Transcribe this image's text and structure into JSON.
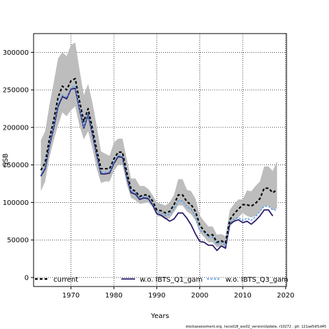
{
  "footer": "stockassessment.org, nscod18_ass02_versionUpdate, r10272 , git: 121ae5df1d45",
  "chart_data": {
    "type": "line",
    "xlabel": "Years",
    "ylabel": "SSB",
    "xlim": [
      1961.3,
      2020.2
    ],
    "ylim": [
      -12000,
      325000
    ],
    "xticks": [
      1970,
      1980,
      1990,
      2000,
      2010,
      2020
    ],
    "yticks": [
      0,
      50000,
      100000,
      150000,
      200000,
      250000,
      300000
    ],
    "grid": true,
    "legend_position": "bottom",
    "series": [
      {
        "name": "current",
        "color": "#000000",
        "dash": "4,3",
        "x": [
          1963,
          1964,
          1965,
          1966,
          1967,
          1968,
          1969,
          1970,
          1971,
          1972,
          1973,
          1974,
          1975,
          1976,
          1977,
          1978,
          1979,
          1980,
          1981,
          1982,
          1983,
          1984,
          1985,
          1986,
          1987,
          1988,
          1989,
          1990,
          1991,
          1992,
          1993,
          1994,
          1995,
          1996,
          1997,
          1998,
          1999,
          2000,
          2001,
          2002,
          2003,
          2004,
          2005,
          2006,
          2007,
          2008,
          2009,
          2010,
          2011,
          2012,
          2013,
          2014,
          2015,
          2016,
          2017,
          2018
        ],
        "values": [
          143000,
          153000,
          185000,
          210000,
          240000,
          255000,
          250000,
          262000,
          265000,
          235000,
          208000,
          225000,
          198000,
          170000,
          145000,
          145000,
          145000,
          158000,
          167000,
          167000,
          140000,
          118000,
          115000,
          108000,
          110000,
          110000,
          102000,
          90000,
          89000,
          86000,
          88000,
          97000,
          110000,
          110000,
          101000,
          97000,
          88000,
          70000,
          62000,
          56000,
          57000,
          47000,
          49000,
          46000,
          77000,
          85000,
          91000,
          97000,
          97000,
          95000,
          99000,
          105000,
          119000,
          119000,
          113000,
          117000
        ],
        "band_upper": [
          183000,
          195000,
          230000,
          260000,
          292000,
          300000,
          295000,
          310000,
          313000,
          277000,
          243000,
          258000,
          233000,
          202000,
          168000,
          165000,
          162000,
          180000,
          185000,
          185000,
          158000,
          132000,
          132000,
          122000,
          122000,
          118000,
          110000,
          100000,
          98000,
          96000,
          100000,
          110000,
          131000,
          131000,
          117000,
          115000,
          105000,
          83000,
          75000,
          68000,
          68000,
          57000,
          58000,
          55000,
          90000,
          98000,
          104000,
          104000,
          116000,
          115000,
          122000,
          128000,
          148000,
          148000,
          142000,
          155000
        ],
        "band_lower": [
          115000,
          128000,
          160000,
          183000,
          203000,
          220000,
          215000,
          223000,
          228000,
          202000,
          184000,
          195000,
          172000,
          145000,
          126000,
          128000,
          128000,
          142000,
          150000,
          150000,
          124000,
          106000,
          103000,
          98000,
          99000,
          100000,
          94000,
          82000,
          81000,
          77000,
          79000,
          87000,
          96000,
          96000,
          88000,
          84000,
          76000,
          60000,
          54000,
          47000,
          47000,
          40000,
          42000,
          39000,
          68000,
          74000,
          80000,
          86000,
          82000,
          80000,
          82000,
          88000,
          95000,
          96000,
          90000,
          92000
        ]
      },
      {
        "name": "w.o. IBTS_Q1_gam",
        "color": "#2b1b6b",
        "dash": "",
        "x": [
          1963,
          1964,
          1965,
          1966,
          1967,
          1968,
          1969,
          1970,
          1971,
          1972,
          1973,
          1974,
          1975,
          1976,
          1977,
          1978,
          1979,
          1980,
          1981,
          1982,
          1983,
          1984,
          1985,
          1986,
          1987,
          1988,
          1989,
          1990,
          1991,
          1992,
          1993,
          1994,
          1995,
          1996,
          1997,
          1998,
          1999,
          2000,
          2001,
          2002,
          2003,
          2004,
          2005,
          2006,
          2007,
          2008,
          2009,
          2010,
          2011,
          2012,
          2013,
          2014,
          2015,
          2016,
          2017
        ],
        "values": [
          135000,
          145000,
          176000,
          200000,
          228000,
          241000,
          238000,
          251000,
          252000,
          224000,
          199000,
          217000,
          191000,
          163000,
          138000,
          138000,
          139000,
          152000,
          161000,
          160000,
          134000,
          113000,
          111000,
          104000,
          106000,
          105000,
          97000,
          85000,
          83000,
          79000,
          75000,
          78000,
          86000,
          86000,
          79000,
          70000,
          58000,
          48000,
          47000,
          43000,
          43000,
          36000,
          42000,
          39000,
          71000,
          75000,
          77000,
          73000,
          75000,
          71000,
          76000,
          82000,
          90000,
          90000,
          82000
        ]
      },
      {
        "name": "w.o. IBTS_Q3_gam",
        "color": "#5aa0e8",
        "dash": "3,2",
        "x": [
          1963,
          1964,
          1965,
          1966,
          1967,
          1968,
          1969,
          1970,
          1971,
          1972,
          1973,
          1974,
          1975,
          1976,
          1977,
          1978,
          1979,
          1980,
          1981,
          1982,
          1983,
          1984,
          1985,
          1986,
          1987,
          1988,
          1989,
          1990,
          1991,
          1992,
          1993,
          1994,
          1995,
          1996,
          1997,
          1998,
          1999,
          2000,
          2001,
          2002,
          2003,
          2004,
          2005,
          2006,
          2007,
          2008,
          2009,
          2010,
          2011,
          2012,
          2013,
          2014,
          2015,
          2016,
          2017,
          2018
        ],
        "values": [
          137000,
          147000,
          178000,
          203000,
          231000,
          243000,
          240000,
          253000,
          255000,
          226000,
          201000,
          219000,
          193000,
          165000,
          140000,
          140000,
          141000,
          154000,
          163000,
          162000,
          136000,
          115000,
          113000,
          106000,
          108000,
          107000,
          99000,
          88000,
          86000,
          83000,
          84000,
          91000,
          102000,
          102000,
          94000,
          91000,
          81000,
          63000,
          60000,
          54000,
          54000,
          44000,
          47000,
          42000,
          73000,
          78000,
          80000,
          76000,
          79000,
          76000,
          81000,
          88000,
          95000,
          95000,
          90000,
          90000
        ]
      }
    ]
  }
}
